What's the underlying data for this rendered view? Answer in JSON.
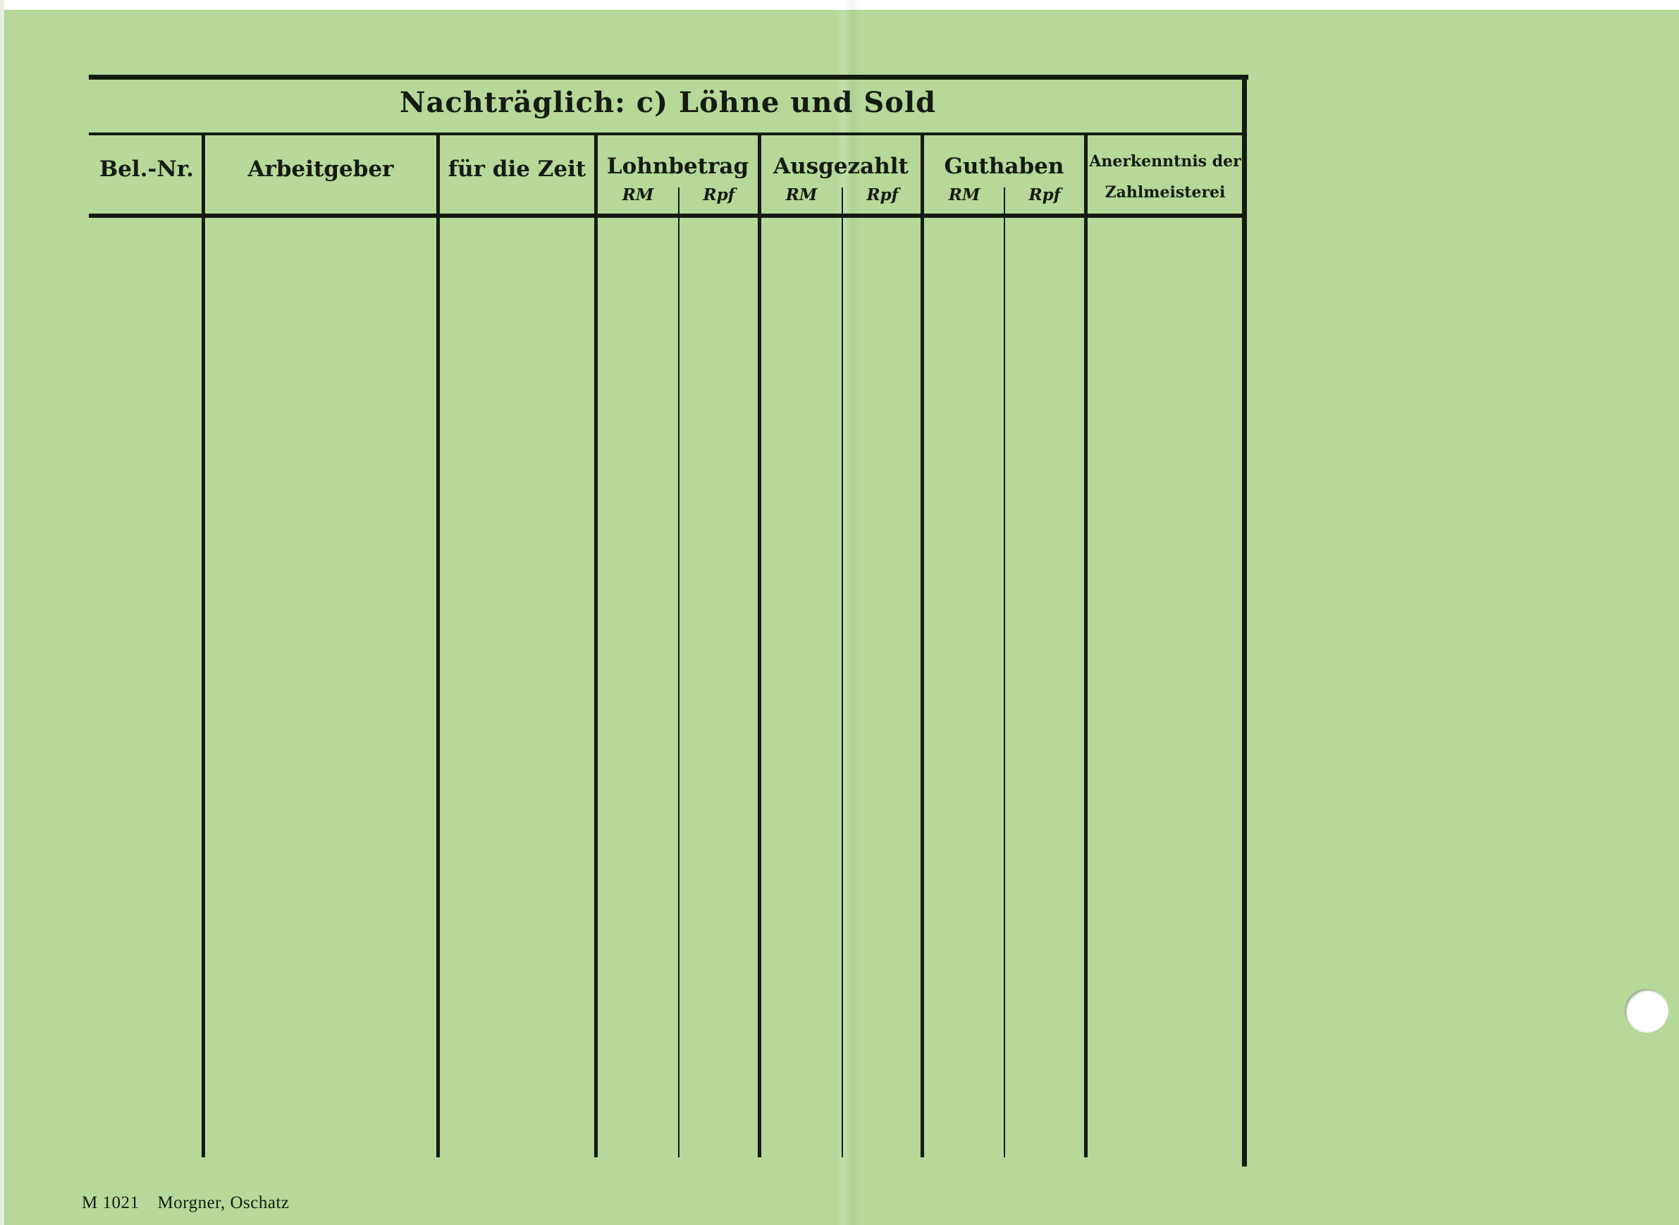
{
  "form": {
    "title": "Nachträglich: c) Löhne und Sold",
    "columns": [
      {
        "label": "Bel.-Nr."
      },
      {
        "label": "Arbeitgeber"
      },
      {
        "label": "für die Zeit"
      },
      {
        "label": "Lohnbetrag",
        "sub": [
          "RM",
          "Rpf"
        ]
      },
      {
        "label": "Ausgezahlt",
        "sub": [
          "RM",
          "Rpf"
        ]
      },
      {
        "label": "Guthaben",
        "sub": [
          "RM",
          "Rpf"
        ]
      },
      {
        "label_lines": [
          "Anerkenntnis der",
          "Zahlmeisterei"
        ]
      }
    ]
  },
  "footer": {
    "code": "M 1021",
    "printer": "Morgner, Oschatz"
  }
}
